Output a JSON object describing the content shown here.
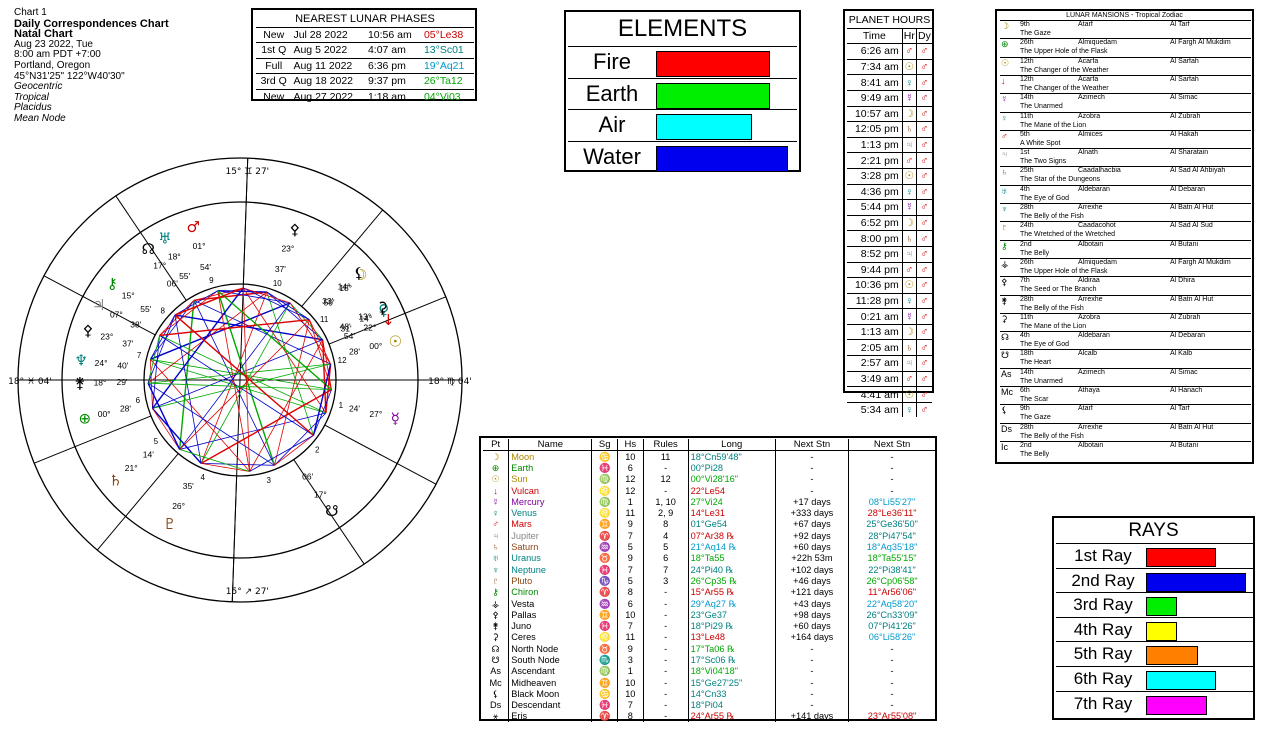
{
  "header": {
    "chart_no": "Chart 1",
    "title": "Daily Correspondences Chart",
    "subtitle": "Natal Chart",
    "date": "Aug 23 2022, Tue",
    "time": "8:00 am  PDT +7:00",
    "place": "Portland, Oregon",
    "coords": "45°N31'25\"  122°W40'30\"",
    "options": [
      "Geocentric",
      "Tropical",
      "Placidus",
      "Mean Node"
    ]
  },
  "lunar_phases": {
    "title": "NEAREST LUNAR PHASES",
    "rows": [
      {
        "phase": "New",
        "date": "Jul 28 2022",
        "time": "10:56 am",
        "pos": "05°Le38",
        "color": "#cc0000"
      },
      {
        "phase": "1st Q",
        "date": "Aug 5 2022",
        "time": "4:07 am",
        "pos": "13°Sc01",
        "color": "#008080"
      },
      {
        "phase": "Full",
        "date": "Aug 11 2022",
        "time": "6:36 pm",
        "pos": "19°Aq21",
        "color": "#0099cc"
      },
      {
        "phase": "3rd Q",
        "date": "Aug 18 2022",
        "time": "9:37 pm",
        "pos": "26°Ta12",
        "color": "#00aa00"
      },
      {
        "phase": "New",
        "date": "Aug 27 2022",
        "time": "1:18 am",
        "pos": "04°Vi03",
        "color": "#00aa00"
      }
    ]
  },
  "elements": {
    "title": "ELEMENTS",
    "items": [
      {
        "name": "Fire",
        "color": "#ff0000",
        "value": 0.86
      },
      {
        "name": "Earth",
        "color": "#00ee00",
        "value": 0.86
      },
      {
        "name": "Air",
        "color": "#00ffff",
        "value": 0.72
      },
      {
        "name": "Water",
        "color": "#0000ee",
        "value": 1.0
      }
    ]
  },
  "planet_hours": {
    "title": "PLANET HOURS",
    "headers": [
      "Time",
      "Hr",
      "Dy"
    ],
    "rows": [
      {
        "time": "6:26 am",
        "hr": "♂",
        "hrc": "#c00",
        "dy": "♂"
      },
      {
        "time": "7:34 am",
        "hr": "☉",
        "hrc": "#aa8800",
        "dy": "♂"
      },
      {
        "time": "8:41 am",
        "hr": "♀",
        "hrc": "#008080",
        "dy": "♂"
      },
      {
        "time": "9:49 am",
        "hr": "☿",
        "hrc": "#8000a0",
        "dy": "♂"
      },
      {
        "time": "10:57 am",
        "hr": "☽",
        "hrc": "#aa8800",
        "dy": "♂"
      },
      {
        "time": "12:05 pm",
        "hr": "♄",
        "hrc": "#8b4513",
        "dy": "♂"
      },
      {
        "time": "1:13 pm",
        "hr": "♃",
        "hrc": "#888888",
        "dy": "♂"
      },
      {
        "time": "2:21 pm",
        "hr": "♂",
        "hrc": "#c00",
        "dy": "♂"
      },
      {
        "time": "3:28 pm",
        "hr": "☉",
        "hrc": "#aa8800",
        "dy": "♂"
      },
      {
        "time": "4:36 pm",
        "hr": "♀",
        "hrc": "#008080",
        "dy": "♂"
      },
      {
        "time": "5:44 pm",
        "hr": "☿",
        "hrc": "#8000a0",
        "dy": "♂"
      },
      {
        "time": "6:52 pm",
        "hr": "☽",
        "hrc": "#aa8800",
        "dy": "♂"
      },
      {
        "time": "8:00 pm",
        "hr": "♄",
        "hrc": "#8b4513",
        "dy": "♂"
      },
      {
        "time": "8:52 pm",
        "hr": "♃",
        "hrc": "#888888",
        "dy": "♂"
      },
      {
        "time": "9:44 pm",
        "hr": "♂",
        "hrc": "#c00",
        "dy": "♂"
      },
      {
        "time": "10:36 pm",
        "hr": "☉",
        "hrc": "#aa8800",
        "dy": "♂"
      },
      {
        "time": "11:28 pm",
        "hr": "♀",
        "hrc": "#008080",
        "dy": "♂"
      },
      {
        "time": "0:21 am",
        "hr": "☿",
        "hrc": "#8000a0",
        "dy": "♂"
      },
      {
        "time": "1:13 am",
        "hr": "☽",
        "hrc": "#aa8800",
        "dy": "♂"
      },
      {
        "time": "2:05 am",
        "hr": "♄",
        "hrc": "#8b4513",
        "dy": "♂"
      },
      {
        "time": "2:57 am",
        "hr": "♃",
        "hrc": "#888888",
        "dy": "♂"
      },
      {
        "time": "3:49 am",
        "hr": "♂",
        "hrc": "#c00",
        "dy": "♂"
      },
      {
        "time": "4:41 am",
        "hr": "☉",
        "hrc": "#aa8800",
        "dy": "♂"
      },
      {
        "time": "5:34 am",
        "hr": "♀",
        "hrc": "#008080",
        "dy": "♂"
      }
    ]
  },
  "mansions": {
    "title": "LUNAR MANSIONS - Tropical Zodiac",
    "rows": [
      {
        "g": "☽",
        "c": "#aa8800",
        "a": "9th",
        "n": "Atarf",
        "r": "Al Tarf",
        "d": "The Gaze"
      },
      {
        "g": "⊕",
        "c": "#008800",
        "a": "26th",
        "n": "Almiquedam",
        "r": "Al Fargh Al Mukdim",
        "d": "The Upper Hole of the Flask"
      },
      {
        "g": "☉",
        "c": "#aa8800",
        "a": "12th",
        "n": "Acarfa",
        "r": "Al Sarfah",
        "d": "The Changer of the Weather"
      },
      {
        "g": "↓",
        "c": "#cc0000",
        "a": "12th",
        "n": "Acarfa",
        "r": "Al Sarfah",
        "d": "The Changer of the Weather"
      },
      {
        "g": "☿",
        "c": "#8000a0",
        "a": "14th",
        "n": "Azimech",
        "r": "Al Simac",
        "d": "The Unarmed"
      },
      {
        "g": "♀",
        "c": "#008080",
        "a": "11th",
        "n": "Azobra",
        "r": "Al Zubrah",
        "d": "The Mane of the Lion"
      },
      {
        "g": "♂",
        "c": "#cc0000",
        "a": "5th",
        "n": "Almices",
        "r": "Al Hakah",
        "d": "A White Spot"
      },
      {
        "g": "♃",
        "c": "#888888",
        "a": "1st",
        "n": "Alnath",
        "r": "Al Sharatain",
        "d": "The Two Signs"
      },
      {
        "g": "♄",
        "c": "#8b4513",
        "a": "25th",
        "n": "Caadalhacbia",
        "r": "Al Sad Al Ahbiyah",
        "d": "The Star of the Dungeons"
      },
      {
        "g": "♅",
        "c": "#008080",
        "a": "4th",
        "n": "Aldebaran",
        "r": "Al Debaran",
        "d": "The Eye of God"
      },
      {
        "g": "♆",
        "c": "#008080",
        "a": "28th",
        "n": "Arrexhe",
        "r": "Al Batn Al Hut",
        "d": "The Belly of the Fish"
      },
      {
        "g": "♇",
        "c": "#8b4513",
        "a": "24th",
        "n": "Caadacohot",
        "r": "Al Sad Al Sud",
        "d": "The Wretched of the Wretched"
      },
      {
        "g": "⚷",
        "c": "#008800",
        "a": "2nd",
        "n": "Albotain",
        "r": "Al Butani",
        "d": "The Belly"
      },
      {
        "g": "⚶",
        "c": "#000000",
        "a": "26th",
        "n": "Almiquedam",
        "r": "Al Fargh Al Mukdim",
        "d": "The Upper Hole of the Flask"
      },
      {
        "g": "⚴",
        "c": "#000000",
        "a": "7th",
        "n": "Aldiraa",
        "r": "Al Dhira",
        "d": "The Seed or The Branch"
      },
      {
        "g": "⚵",
        "c": "#000000",
        "a": "28th",
        "n": "Arrexhe",
        "r": "Al Batn Al Hut",
        "d": "The Belly of the Fish"
      },
      {
        "g": "⚳",
        "c": "#000000",
        "a": "11th",
        "n": "Azobra",
        "r": "Al Zubrah",
        "d": "The Mane of the Lion"
      },
      {
        "g": "☊",
        "c": "#000000",
        "a": "4th",
        "n": "Aldebaran",
        "r": "Al Debaran",
        "d": "The Eye of God"
      },
      {
        "g": "☋",
        "c": "#000000",
        "a": "18th",
        "n": "Alcalb",
        "r": "Al Kalb",
        "d": "The Heart"
      },
      {
        "g": "As",
        "c": "#000000",
        "a": "14th",
        "n": "Azimech",
        "r": "Al Simac",
        "d": "The Unarmed"
      },
      {
        "g": "Mc",
        "c": "#000000",
        "a": "6th",
        "n": "Athaya",
        "r": "Al Hanach",
        "d": "The Scar"
      },
      {
        "g": "⚸",
        "c": "#000000",
        "a": "9th",
        "n": "Atarf",
        "r": "Al Tarf",
        "d": "The Gaze"
      },
      {
        "g": "Ds",
        "c": "#000000",
        "a": "28th",
        "n": "Arrexhe",
        "r": "Al Batn Al Hut",
        "d": "The Belly of the Fish"
      },
      {
        "g": "Ic",
        "c": "#000000",
        "a": "2nd",
        "n": "Albotain",
        "r": "Al Butani",
        "d": "The Belly"
      }
    ]
  },
  "planet_table": {
    "headers": [
      "Pt",
      "Name",
      "Sg",
      "Hs",
      "Rules",
      "Long",
      "Next Stn",
      "Next Stn"
    ],
    "rows": [
      {
        "g": "☽",
        "name": "Moon",
        "c": "#aa8800",
        "sg": "♋",
        "hs": "10",
        "rules": "11",
        "long": "18°Cn59'48\"",
        "lc": "#008080",
        "ns": "-",
        "ns2": "-",
        "nc": "#000"
      },
      {
        "g": "⊕",
        "name": "Earth",
        "c": "#008800",
        "sg": "♓",
        "hs": "6",
        "rules": "-",
        "long": "00°Pi28",
        "lc": "#008080",
        "ns": "-",
        "ns2": "-",
        "nc": "#000"
      },
      {
        "g": "☉",
        "name": "Sun",
        "c": "#aa8800",
        "sg": "♍",
        "hs": "12",
        "rules": "12",
        "long": "00°Vi28'16\"",
        "lc": "#00aa00",
        "ns": "-",
        "ns2": "-",
        "nc": "#000"
      },
      {
        "g": "↓",
        "name": "Vulcan",
        "c": "#cc0000",
        "sg": "♌",
        "hs": "12",
        "rules": "-",
        "long": "22°Le54",
        "lc": "#cc0000",
        "ns": "-",
        "ns2": "-",
        "nc": "#000"
      },
      {
        "g": "☿",
        "name": "Mercury",
        "c": "#8000a0",
        "sg": "♍",
        "hs": "1",
        "rules": "1, 10",
        "long": "27°Vi24",
        "lc": "#00aa00",
        "ns": "+17 days",
        "ns2": "08°Li55'27\"",
        "nc": "#0099cc"
      },
      {
        "g": "♀",
        "name": "Venus",
        "c": "#008080",
        "sg": "♌",
        "hs": "11",
        "rules": "2, 9",
        "long": "14°Le31",
        "lc": "#cc0000",
        "ns": "+333 days",
        "ns2": "28°Le36'11\"",
        "nc": "#cc0000"
      },
      {
        "g": "♂",
        "name": "Mars",
        "c": "#cc0000",
        "sg": "♊",
        "hs": "9",
        "rules": "8",
        "long": "01°Ge54",
        "lc": "#008080",
        "ns": "+67 days",
        "ns2": "25°Ge36'50\"",
        "nc": "#008080"
      },
      {
        "g": "♃",
        "name": "Jupiter",
        "c": "#888888",
        "sg": "♈",
        "hs": "7",
        "rules": "4",
        "long": "07°Ar38 ℞",
        "lc": "#cc0000",
        "ns": "+92 days",
        "ns2": "28°Pi47'54\"",
        "nc": "#008080"
      },
      {
        "g": "♄",
        "name": "Saturn",
        "c": "#8b4513",
        "sg": "♒",
        "hs": "5",
        "rules": "5",
        "long": "21°Aq14 ℞",
        "lc": "#0099cc",
        "ns": "+60 days",
        "ns2": "18°Aq35'18\"",
        "nc": "#0099cc"
      },
      {
        "g": "♅",
        "name": "Uranus",
        "c": "#008080",
        "sg": "♉",
        "hs": "9",
        "rules": "6",
        "long": "18°Ta55",
        "lc": "#00aa00",
        "ns": "+22h 53m",
        "ns2": "18°Ta55'15\"",
        "nc": "#00aa00"
      },
      {
        "g": "♆",
        "name": "Neptune",
        "c": "#008080",
        "sg": "♓",
        "hs": "7",
        "rules": "7",
        "long": "24°Pi40 ℞",
        "lc": "#008080",
        "ns": "+102 days",
        "ns2": "22°Pi38'41\"",
        "nc": "#008080"
      },
      {
        "g": "♇",
        "name": "Pluto",
        "c": "#8b4513",
        "sg": "♑",
        "hs": "5",
        "rules": "3",
        "long": "26°Cp35 ℞",
        "lc": "#00aa00",
        "ns": "+46 days",
        "ns2": "26°Cp06'58\"",
        "nc": "#00aa00"
      },
      {
        "g": "⚷",
        "name": "Chiron",
        "c": "#008800",
        "sg": "♈",
        "hs": "8",
        "rules": "-",
        "long": "15°Ar55 ℞",
        "lc": "#cc0000",
        "ns": "+121 days",
        "ns2": "11°Ar56'06\"",
        "nc": "#cc0000"
      },
      {
        "g": "⚶",
        "name": "Vesta",
        "c": "#000000",
        "sg": "♒",
        "hs": "6",
        "rules": "-",
        "long": "29°Aq27 ℞",
        "lc": "#0099cc",
        "ns": "+43 days",
        "ns2": "22°Aq58'20\"",
        "nc": "#0099cc"
      },
      {
        "g": "⚴",
        "name": "Pallas",
        "c": "#000000",
        "sg": "♊",
        "hs": "10",
        "rules": "-",
        "long": "23°Ge37",
        "lc": "#008080",
        "ns": "+98 days",
        "ns2": "26°Cn33'09\"",
        "nc": "#008080"
      },
      {
        "g": "⚵",
        "name": "Juno",
        "c": "#000000",
        "sg": "♓",
        "hs": "7",
        "rules": "-",
        "long": "18°Pi29 ℞",
        "lc": "#008080",
        "ns": "+60 days",
        "ns2": "07°Pi41'26\"",
        "nc": "#008080"
      },
      {
        "g": "⚳",
        "name": "Ceres",
        "c": "#000000",
        "sg": "♌",
        "hs": "11",
        "rules": "-",
        "long": "13°Le48",
        "lc": "#cc0000",
        "ns": "+164 days",
        "ns2": "06°Li58'26\"",
        "nc": "#0099cc"
      },
      {
        "g": "☊",
        "name": "North Node",
        "c": "#000000",
        "sg": "♉",
        "hs": "9",
        "rules": "-",
        "long": "17°Ta06 ℞",
        "lc": "#00aa00",
        "ns": "-",
        "ns2": "-",
        "nc": "#000"
      },
      {
        "g": "☋",
        "name": "South Node",
        "c": "#000000",
        "sg": "♏",
        "hs": "3",
        "rules": "-",
        "long": "17°Sc06 ℞",
        "lc": "#008080",
        "ns": "-",
        "ns2": "-",
        "nc": "#000"
      },
      {
        "g": "As",
        "name": "Ascendant",
        "c": "#000000",
        "sg": "♍",
        "hs": "1",
        "rules": "-",
        "long": "18°Vi04'18\"",
        "lc": "#00aa00",
        "ns": "-",
        "ns2": "-",
        "nc": "#000"
      },
      {
        "g": "Mc",
        "name": "Midheaven",
        "c": "#000000",
        "sg": "♊",
        "hs": "10",
        "rules": "-",
        "long": "15°Ge27'25\"",
        "lc": "#008080",
        "ns": "-",
        "ns2": "-",
        "nc": "#000"
      },
      {
        "g": "⚸",
        "name": "Black Moon",
        "c": "#000000",
        "sg": "♋",
        "hs": "10",
        "rules": "-",
        "long": "14°Cn33",
        "lc": "#008080",
        "ns": "-",
        "ns2": "-",
        "nc": "#000"
      },
      {
        "g": "Ds",
        "name": "Descendant",
        "c": "#000000",
        "sg": "♓",
        "hs": "7",
        "rules": "-",
        "long": "18°Pi04",
        "lc": "#008080",
        "ns": "-",
        "ns2": "-",
        "nc": "#000"
      },
      {
        "g": "⚹",
        "name": "Eris",
        "c": "#000000",
        "sg": "♈",
        "hs": "8",
        "rules": "-",
        "long": "24°Ar55 ℞",
        "lc": "#cc0000",
        "ns": "+141 days",
        "ns2": "23°Ar55'08\"",
        "nc": "#cc0000"
      }
    ]
  },
  "rays": {
    "title": "RAYS",
    "items": [
      {
        "name": "1st Ray",
        "color": "#ff0000",
        "value": 0.45
      },
      {
        "name": "2nd Ray",
        "color": "#0000ee",
        "value": 0.65
      },
      {
        "name": "3rd Ray",
        "color": "#00ee00",
        "value": 0.19
      },
      {
        "name": "4th Ray",
        "color": "#ffff00",
        "value": 0.19
      },
      {
        "name": "5th Ray",
        "color": "#ff8000",
        "value": 0.33
      },
      {
        "name": "6th Ray",
        "color": "#00ffff",
        "value": 0.45
      },
      {
        "name": "7th Ray",
        "color": "#ff00ff",
        "value": 0.39
      }
    ]
  },
  "wheel": {
    "cusp_labels": [
      {
        "text": "15° ♊ 27'",
        "angle": 92
      },
      {
        "text": "15° ↗ 27'",
        "angle": 268
      },
      {
        "text": "18° ♍ 04'",
        "angle": 180
      },
      {
        "text": "18° ♓ 04'",
        "angle": 0
      }
    ],
    "house_numbers": [
      "1",
      "2",
      "3",
      "4",
      "5",
      "6",
      "7",
      "8",
      "9",
      "10",
      "11",
      "12"
    ],
    "planet_glyphs": [
      {
        "g": "☽",
        "c": "#aa8800",
        "angle": 139,
        "deg": "18°",
        "min": "59'"
      },
      {
        "g": "♀",
        "c": "#008080",
        "angle": 154,
        "deg": "14°",
        "min": "31'"
      },
      {
        "g": "⚸",
        "c": "#000",
        "angle": 138,
        "deg": "14°",
        "min": "33'"
      },
      {
        "g": "⚳",
        "c": "#000",
        "angle": 153,
        "deg": "13°",
        "min": "48'"
      },
      {
        "g": "↓",
        "c": "#cc0000",
        "angle": 158,
        "deg": "22°",
        "min": "54'"
      },
      {
        "g": "☉",
        "c": "#aa8800",
        "angle": 166,
        "deg": "00°",
        "min": "28'"
      },
      {
        "g": "☿",
        "c": "#8000a0",
        "angle": 194,
        "deg": "27°",
        "min": "24'"
      },
      {
        "g": "♄",
        "c": "#8b4513",
        "angle": 321,
        "deg": "21°",
        "min": "14'"
      },
      {
        "g": "♇",
        "c": "#8b4513",
        "angle": 296,
        "deg": "26°",
        "min": "35'"
      },
      {
        "g": "⊕",
        "c": "#008800",
        "angle": 346,
        "deg": "00°",
        "min": "28'"
      },
      {
        "g": "♆",
        "c": "#008080",
        "angle": 7,
        "deg": "24°",
        "min": "40'"
      },
      {
        "g": "⚵",
        "c": "#000",
        "angle": 359,
        "deg": "18°",
        "min": "29'"
      },
      {
        "g": "⚴",
        "c": "#000",
        "angle": 18,
        "deg": "23°",
        "min": "37'"
      },
      {
        "g": "♃",
        "c": "#888888",
        "angle": 28,
        "deg": "07°",
        "min": "38'"
      },
      {
        "g": "⚷",
        "c": "#008800",
        "angle": 37,
        "deg": "15°",
        "min": "55'"
      },
      {
        "g": "♅",
        "c": "#008080",
        "angle": 62,
        "deg": "18°",
        "min": "55'"
      },
      {
        "g": "☊",
        "c": "#000",
        "angle": 55,
        "deg": "17°",
        "min": "06'"
      },
      {
        "g": "♂",
        "c": "#cc0000",
        "angle": 73,
        "deg": "01°",
        "min": "54'"
      },
      {
        "g": "⚴",
        "c": "#000",
        "angle": 110,
        "deg": "23°",
        "min": "37'"
      },
      {
        "g": "☋",
        "c": "#000",
        "angle": 235,
        "deg": "17°",
        "min": "06'"
      }
    ]
  }
}
